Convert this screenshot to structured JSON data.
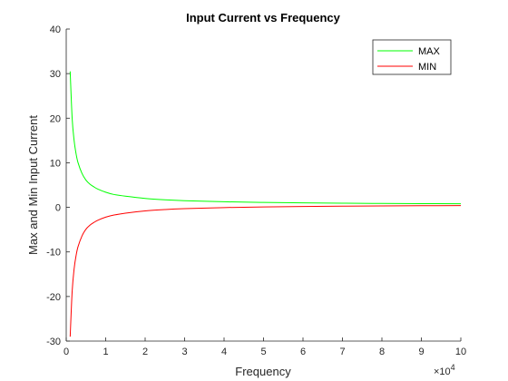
{
  "chart_data": {
    "type": "line",
    "title": "Input Current vs Frequency",
    "xlabel": "Frequency",
    "ylabel": "Max and Min Input Current",
    "x_exponent_base": "×10",
    "x_exponent_power": "4",
    "xlim": [
      0,
      100000
    ],
    "ylim": [
      -30,
      40
    ],
    "x_ticks": [
      0,
      10000,
      20000,
      30000,
      40000,
      50000,
      60000,
      70000,
      80000,
      90000,
      100000
    ],
    "x_tick_labels": [
      "0",
      "1",
      "2",
      "3",
      "4",
      "5",
      "6",
      "7",
      "8",
      "9",
      "10"
    ],
    "y_ticks": [
      -30,
      -20,
      -10,
      0,
      10,
      20,
      30,
      40
    ],
    "y_tick_labels": [
      "-30",
      "-20",
      "-10",
      "0",
      "10",
      "20",
      "30",
      "40"
    ],
    "grid": false,
    "legend_location": "top-right",
    "series": [
      {
        "name": "MAX",
        "color": "#00ff00",
        "x": [
          1000,
          1500,
          2000,
          2500,
          3000,
          4000,
          5000,
          6000,
          7000,
          8000,
          10000,
          12000,
          15000,
          20000,
          25000,
          30000,
          40000,
          50000,
          60000,
          70000,
          80000,
          90000,
          100000
        ],
        "y": [
          30.5,
          20.0,
          15.0,
          12.0,
          10.0,
          7.6,
          6.1,
          5.2,
          4.6,
          4.1,
          3.4,
          2.9,
          2.5,
          2.0,
          1.7,
          1.5,
          1.25,
          1.1,
          1.0,
          0.93,
          0.88,
          0.84,
          0.8
        ]
      },
      {
        "name": "MIN",
        "color": "#ff0000",
        "x": [
          1000,
          1500,
          2000,
          2500,
          3000,
          4000,
          5000,
          6000,
          7000,
          8000,
          10000,
          12000,
          15000,
          20000,
          25000,
          30000,
          40000,
          50000,
          60000,
          70000,
          80000,
          90000,
          100000
        ],
        "y": [
          -29.0,
          -18.9,
          -13.8,
          -10.8,
          -8.8,
          -6.4,
          -4.9,
          -4.0,
          -3.4,
          -2.9,
          -2.2,
          -1.75,
          -1.3,
          -0.8,
          -0.5,
          -0.3,
          -0.05,
          0.1,
          0.2,
          0.27,
          0.32,
          0.36,
          0.4
        ]
      }
    ]
  }
}
